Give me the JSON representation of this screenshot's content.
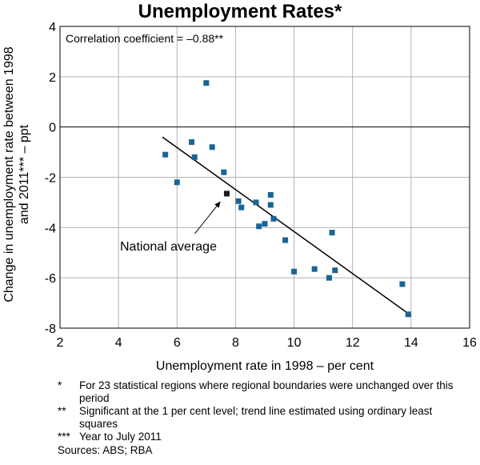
{
  "chart_data": {
    "type": "scatter",
    "title": "Unemployment Rates*",
    "xlabel": "Unemployment rate in 1998 – per cent",
    "ylabel": "Change in unemployment rate between 1998 and 2011*** – ppt",
    "xlim": [
      2,
      16
    ],
    "ylim": [
      -8,
      4
    ],
    "x_ticks": [
      "2",
      "4",
      "6",
      "8",
      "10",
      "12",
      "14",
      "16"
    ],
    "y_ticks": [
      "4",
      "2",
      "0",
      "-2",
      "-4",
      "-6",
      "-8"
    ],
    "grid": true,
    "annotation": "Correlation coefficient = –0.88**",
    "series": [
      {
        "name": "Statistical regions",
        "color": "#1a6496",
        "points": [
          [
            5.6,
            -1.1
          ],
          [
            6.0,
            -2.2
          ],
          [
            6.5,
            -0.6
          ],
          [
            6.6,
            -1.2
          ],
          [
            7.0,
            1.75
          ],
          [
            7.2,
            -0.8
          ],
          [
            7.6,
            -1.8
          ],
          [
            8.1,
            -2.95
          ],
          [
            8.2,
            -3.2
          ],
          [
            8.7,
            -3.0
          ],
          [
            8.8,
            -3.95
          ],
          [
            9.0,
            -3.85
          ],
          [
            9.2,
            -2.7
          ],
          [
            9.2,
            -3.1
          ],
          [
            9.3,
            -3.65
          ],
          [
            9.7,
            -4.5
          ],
          [
            10.0,
            -5.75
          ],
          [
            10.7,
            -5.65
          ],
          [
            11.2,
            -6.0
          ],
          [
            11.3,
            -4.2
          ],
          [
            11.4,
            -5.7
          ],
          [
            13.7,
            -6.25
          ],
          [
            13.9,
            -7.45
          ]
        ]
      },
      {
        "name": "National average",
        "color": "#1a1a1a",
        "points": [
          [
            7.7,
            -2.65
          ]
        ]
      }
    ],
    "trend_line": {
      "from": [
        5.5,
        -0.4
      ],
      "to": [
        14.0,
        -7.5
      ]
    },
    "point_label": "National average"
  },
  "footnotes": [
    {
      "mark": "*",
      "text": "For 23 statistical regions where regional boundaries were unchanged over this period"
    },
    {
      "mark": "**",
      "text": "Significant at the 1 per cent level; trend line estimated using ordinary least squares"
    },
    {
      "mark": "***",
      "text": "Year to July 2011"
    }
  ],
  "sources": "Sources: ABS; RBA"
}
